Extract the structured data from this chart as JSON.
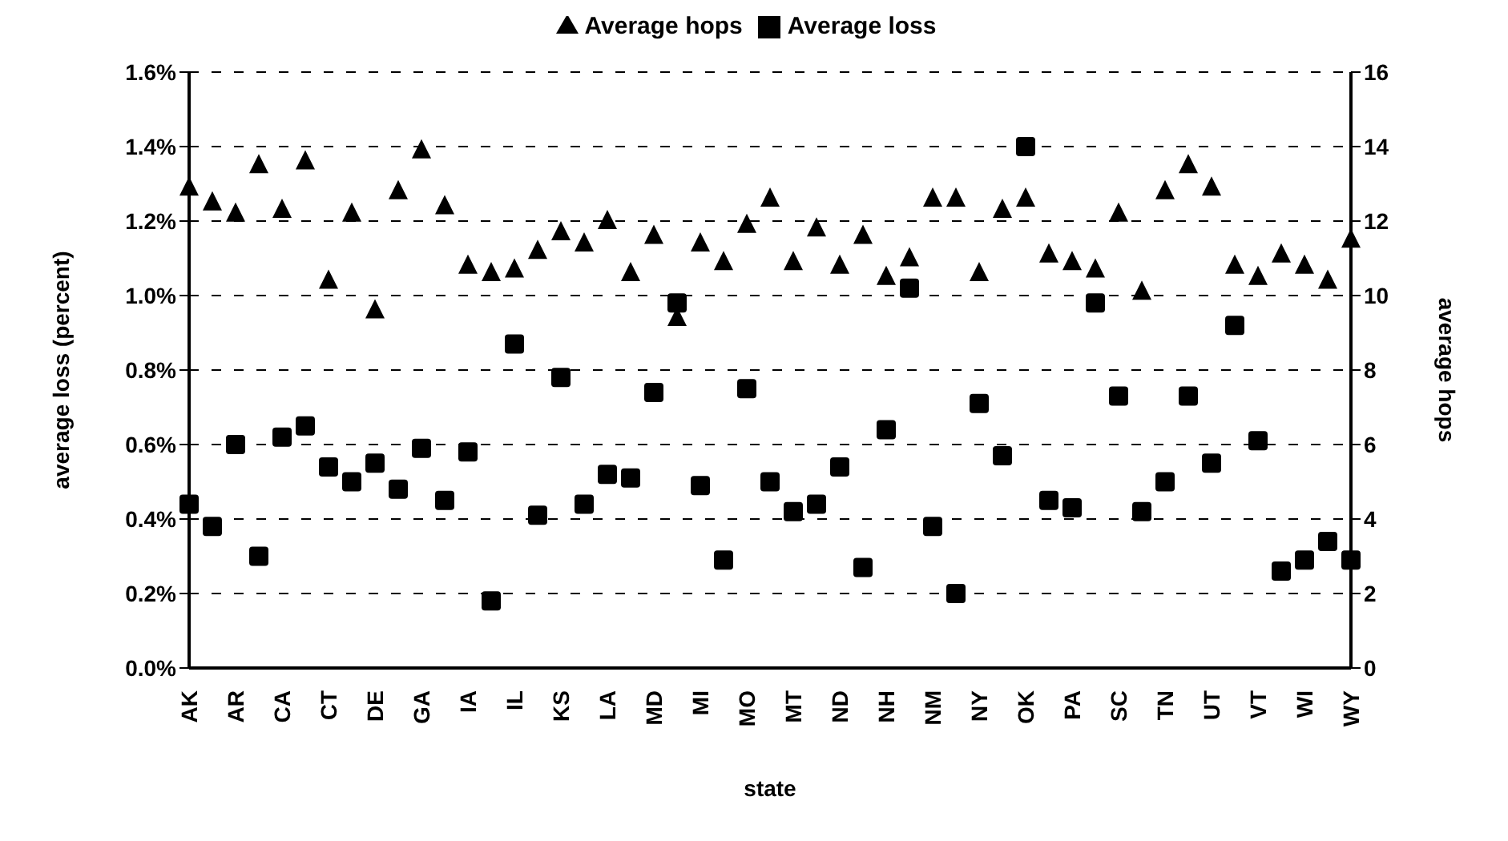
{
  "chart_data": {
    "type": "scatter",
    "xlabel": "state",
    "ylabel": "average loss (percent)",
    "y2label": "average hops",
    "categories": [
      "AK",
      null,
      "AR",
      null,
      "CA",
      null,
      "CT",
      null,
      "DE",
      null,
      "GA",
      null,
      "IA",
      null,
      "IL",
      null,
      "KS",
      null,
      "LA",
      null,
      "MD",
      null,
      "MI",
      null,
      "MO",
      null,
      "MT",
      null,
      "ND",
      null,
      "NH",
      null,
      "NM",
      null,
      "NY",
      null,
      "OK",
      null,
      "PA",
      null,
      "SC",
      null,
      "TN",
      null,
      "UT",
      null,
      "VT",
      null,
      "WI",
      null,
      "WY"
    ],
    "series": [
      {
        "name": "Average loss",
        "color": "#000000",
        "marker": "square",
        "values": [
          0.44,
          0.38,
          0.6,
          0.3,
          0.62,
          0.65,
          0.54,
          0.5,
          0.55,
          0.48,
          0.59,
          0.45,
          0.58,
          0.18,
          0.87,
          0.41,
          0.78,
          0.44,
          0.52,
          0.51,
          0.74,
          0.98,
          0.49,
          0.29,
          0.75,
          0.5,
          0.42,
          0.44,
          0.54,
          0.27,
          0.64,
          1.02,
          0.38,
          0.2,
          0.71,
          0.57,
          1.4,
          0.45,
          0.43,
          0.98,
          0.73,
          0.42,
          0.5,
          0.73,
          0.55,
          0.92,
          0.61,
          0.26,
          0.29,
          0.34,
          0.29
        ]
      },
      {
        "name": "Average hops",
        "color": "#000000",
        "marker": "triangle",
        "axis": "y2",
        "values": [
          12.9,
          12.5,
          12.2,
          13.5,
          12.3,
          13.6,
          10.4,
          12.2,
          9.6,
          12.8,
          13.9,
          12.4,
          10.8,
          10.6,
          10.7,
          11.2,
          11.7,
          11.4,
          12.0,
          10.6,
          11.6,
          9.4,
          11.4,
          10.9,
          11.9,
          12.6,
          10.9,
          11.8,
          10.8,
          11.6,
          10.5,
          11.0,
          12.6,
          12.6,
          10.6,
          12.3,
          12.6,
          11.1,
          10.9,
          10.7,
          12.2,
          10.1,
          12.8,
          13.5,
          12.9,
          10.8,
          10.5,
          11.1,
          10.8,
          10.4,
          11.5
        ]
      }
    ],
    "ylim": [
      0,
      1.6
    ],
    "yticks": [
      {
        "value": 0,
        "label": "0.0%"
      },
      {
        "value": 0.2,
        "label": "0.2%"
      },
      {
        "value": 0.4,
        "label": "0.4%"
      },
      {
        "value": 0.6,
        "label": "0.6%"
      },
      {
        "value": 0.8,
        "label": "0.8%"
      },
      {
        "value": 1.0,
        "label": "1.0%"
      },
      {
        "value": 1.2,
        "label": "1.2%"
      },
      {
        "value": 1.4,
        "label": "1.4%"
      },
      {
        "value": 1.6,
        "label": "1.6%"
      }
    ],
    "y2lim": [
      0,
      16
    ],
    "y2ticks": [
      0,
      2,
      4,
      6,
      8,
      10,
      12,
      14,
      16
    ],
    "grid": "y",
    "legend": "top"
  }
}
